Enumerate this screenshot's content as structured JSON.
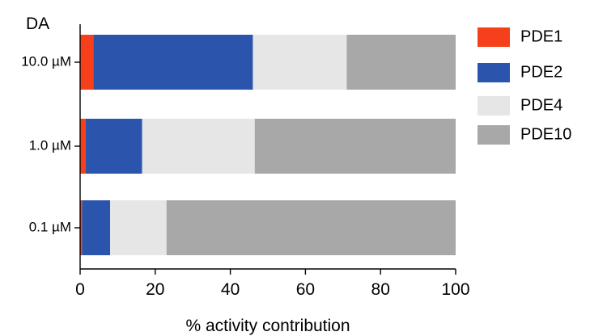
{
  "chart_data": {
    "type": "bar",
    "orientation": "horizontal",
    "stacked": true,
    "title": "DA",
    "xlabel": "% activity contribution",
    "ylabel": "",
    "xlim": [
      0,
      100
    ],
    "xticks": [
      0,
      20,
      40,
      60,
      80,
      100
    ],
    "categories": [
      "10.0 µM",
      "1.0 µM",
      "0.1 µM"
    ],
    "series": [
      {
        "name": "PDE1",
        "color": "#f5401b",
        "values": [
          3.5,
          1.5,
          0.5
        ]
      },
      {
        "name": "PDE2",
        "color": "#2b55ad",
        "values": [
          42.5,
          15,
          7.5
        ]
      },
      {
        "name": "PDE4",
        "color": "#e6e6e6",
        "values": [
          25,
          30,
          15
        ]
      },
      {
        "name": "PDE10",
        "color": "#a8a8a8",
        "values": [
          29,
          53.5,
          77
        ]
      }
    ],
    "legend_position": "right",
    "grid": false
  }
}
